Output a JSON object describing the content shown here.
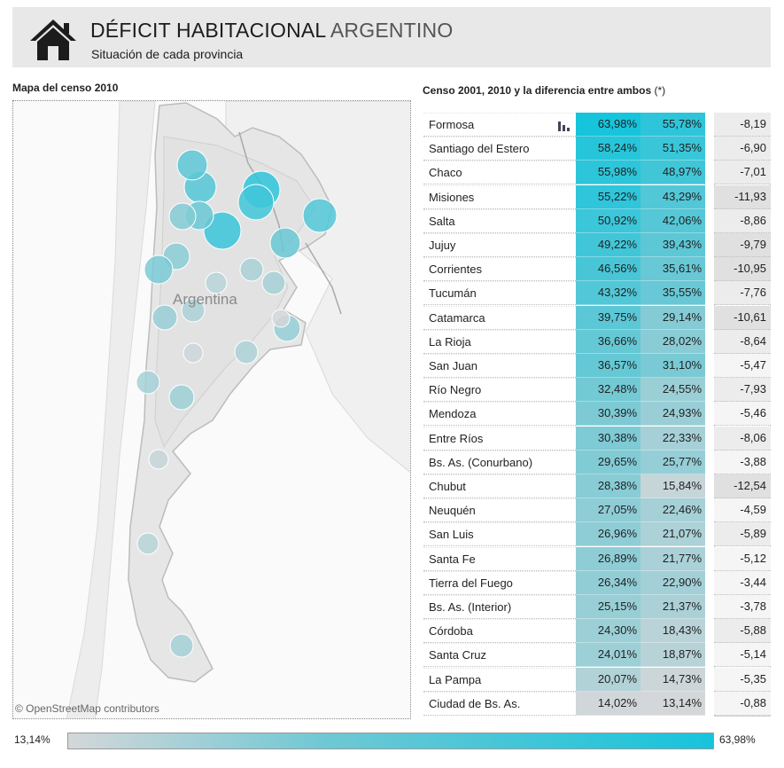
{
  "header": {
    "title_main": "DÉFICIT HABITACIONAL",
    "title_accent": "ARGENTINO",
    "subtitle": "Situación de cada provincia",
    "icon": "house-icon"
  },
  "map": {
    "title": "Mapa del censo 2010",
    "country_label": "Argentina",
    "attribution": "© OpenStreetMap contributors"
  },
  "table": {
    "title": "Censo 2001, 2010 y la diferencia entre ambos",
    "title_note": "(*)",
    "rows": [
      {
        "name": "Formosa",
        "v2001": "63,98%",
        "v2010": "55,78%",
        "diff": "-8,19"
      },
      {
        "name": "Santiago del Estero",
        "v2001": "58,24%",
        "v2010": "51,35%",
        "diff": "-6,90"
      },
      {
        "name": "Chaco",
        "v2001": "55,98%",
        "v2010": "48,97%",
        "diff": "-7,01"
      },
      {
        "name": "Misiones",
        "v2001": "55,22%",
        "v2010": "43,29%",
        "diff": "-11,93"
      },
      {
        "name": "Salta",
        "v2001": "50,92%",
        "v2010": "42,06%",
        "diff": "-8,86"
      },
      {
        "name": "Jujuy",
        "v2001": "49,22%",
        "v2010": "39,43%",
        "diff": "-9,79"
      },
      {
        "name": "Corrientes",
        "v2001": "46,56%",
        "v2010": "35,61%",
        "diff": "-10,95"
      },
      {
        "name": "Tucumán",
        "v2001": "43,32%",
        "v2010": "35,55%",
        "diff": "-7,76"
      },
      {
        "name": "Catamarca",
        "v2001": "39,75%",
        "v2010": "29,14%",
        "diff": "-10,61"
      },
      {
        "name": "La Rioja",
        "v2001": "36,66%",
        "v2010": "28,02%",
        "diff": "-8,64"
      },
      {
        "name": "San Juan",
        "v2001": "36,57%",
        "v2010": "31,10%",
        "diff": "-5,47"
      },
      {
        "name": "Río Negro",
        "v2001": "32,48%",
        "v2010": "24,55%",
        "diff": "-7,93"
      },
      {
        "name": "Mendoza",
        "v2001": "30,39%",
        "v2010": "24,93%",
        "diff": "-5,46"
      },
      {
        "name": "Entre Ríos",
        "v2001": "30,38%",
        "v2010": "22,33%",
        "diff": "-8,06"
      },
      {
        "name": "Bs. As. (Conurbano)",
        "v2001": "29,65%",
        "v2010": "25,77%",
        "diff": "-3,88"
      },
      {
        "name": "Chubut",
        "v2001": "28,38%",
        "v2010": "15,84%",
        "diff": "-12,54"
      },
      {
        "name": "Neuquén",
        "v2001": "27,05%",
        "v2010": "22,46%",
        "diff": "-4,59"
      },
      {
        "name": "San Luis",
        "v2001": "26,96%",
        "v2010": "21,07%",
        "diff": "-5,89"
      },
      {
        "name": "Santa Fe",
        "v2001": "26,89%",
        "v2010": "21,77%",
        "diff": "-5,12"
      },
      {
        "name": "Tierra del Fuego",
        "v2001": "26,34%",
        "v2010": "22,90%",
        "diff": "-3,44"
      },
      {
        "name": "Bs. As. (Interior)",
        "v2001": "25,15%",
        "v2010": "21,37%",
        "diff": "-3,78"
      },
      {
        "name": "Córdoba",
        "v2001": "24,30%",
        "v2010": "18,43%",
        "diff": "-5,88"
      },
      {
        "name": "Santa Cruz",
        "v2001": "24,01%",
        "v2010": "18,87%",
        "diff": "-5,14"
      },
      {
        "name": "La Pampa",
        "v2001": "20,07%",
        "v2010": "14,73%",
        "diff": "-5,35"
      },
      {
        "name": "Ciudad de Bs. As.",
        "v2001": "14,02%",
        "v2010": "13,14%",
        "diff": "-0,88"
      }
    ]
  },
  "legend": {
    "min_label": "13,14%",
    "max_label": "63,98%",
    "min": 13.14,
    "max": 63.98
  },
  "colors": {
    "low": "#d4d7d9",
    "mid": "#6ec8d4",
    "high": "#16c4dc",
    "diff_light": "#f5f5f5",
    "diff_dark": "#e0e0e0"
  }
}
